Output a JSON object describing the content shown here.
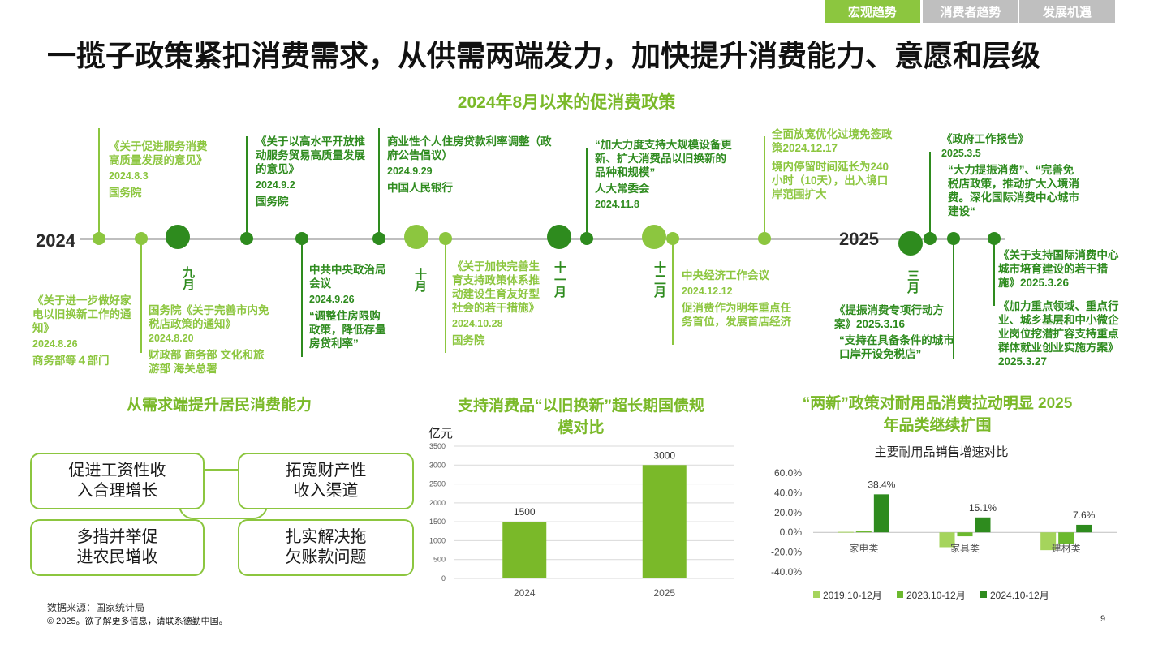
{
  "header": {
    "tabs": [
      {
        "label": "宏观趋势",
        "color": "#8cc63f"
      },
      {
        "label": "消费者趋势",
        "color": "#bfbfbf"
      },
      {
        "label": "发展机遇",
        "color": "#bfbfbf"
      }
    ],
    "title": "一揽子政策紧扣消费需求，从供需两端发力，加快提升消费能力、意愿和层级"
  },
  "timeline": {
    "title": "2024年8月以来的促消费政策",
    "year_start": "2024",
    "year_end": "2025",
    "months": [
      "九月",
      "十月",
      "十一月",
      "十二月",
      "三月"
    ],
    "colors": {
      "light": "#8cc63f",
      "dark": "#2e8b1e"
    },
    "events": [
      {
        "title": "《关于促进服务消费高质量发展的意见》",
        "date": "2024.8.3",
        "org": "国务院"
      },
      {
        "title": "《关于进一步做好家电以旧换新工作的通知》",
        "date": "2024.8.26",
        "org": "商务部等４部门"
      },
      {
        "title": "国务院《关于完善市内免税店政策的通知》",
        "date": "2024.8.20",
        "org": "财政部 商务部 文化和旅游部 海关总署"
      },
      {
        "title": "《关于以高水平开放推动服务贸易高质量发展的意见》",
        "date": "2024.9.2",
        "org": "国务院"
      },
      {
        "title": "中共中央政治局会议",
        "date": "2024.9.26",
        "note": "“调整住房限购政策，降低存量房贷利率”"
      },
      {
        "title": "商业性个人住房贷款利率调整（政府公告倡议）",
        "date": "2024.9.29",
        "org": "中国人民银行"
      },
      {
        "title": "《关于加快完善生育支持政策体系推动建设生育友好型社会的若干措施》",
        "date": "2024.10.28",
        "org": "国务院"
      },
      {
        "title": "“加大力度支持大规模设备更新、扩大消费品以旧换新的品种和规模”",
        "org": "人大常委会",
        "date": "2024.11.8"
      },
      {
        "title": "中央经济工作会议",
        "date": "2024.12.12",
        "note": "促消费作为明年重点任务首位，发展首店经济"
      },
      {
        "title": "全面放宽优化过境免签政策2024.12.17",
        "note": "境内停留时间延长为240小时（10天），出入境口岸范围扩大"
      },
      {
        "title": "《政府工作报告》",
        "date": "2025.3.5",
        "note": "“大力提振消费”、“完善免税店政策，推动扩大入境消费。深化国际消费中心城市建设“"
      },
      {
        "title": "《提振消费专项行动方案》2025.3.16",
        "note": "“支持在具备条件的城市口岸开设免税店”"
      },
      {
        "title": "《关于支持国际消费中心城市培育建设的若干措施》2025.3.26",
        "note": "《加力重点领域、重点行业、城乡基层和中小微企业岗位挖潜扩容支持重点群体就业创业实施方案》2025.3.27"
      }
    ]
  },
  "demand": {
    "title": "从需求端提升居民消费能力",
    "boxes": [
      "促进工资性收入合理增长",
      "拓宽财产性收入渠道",
      "多措并举促进农民增收",
      "扎实解决拖欠账款问题"
    ]
  },
  "bond": {
    "title": "支持消费品“以旧换新”超长期国债规模对比"
  },
  "durables": {
    "title": "“两新”政策对耐用品消费拉动明显 2025年品类继续扩围",
    "chart_title": "主要耐用品销售增速对比"
  },
  "chart_data": [
    {
      "type": "bar",
      "ylabel": "亿元",
      "categories": [
        "2024",
        "2025"
      ],
      "values": [
        1500,
        3000
      ],
      "data_labels": [
        "1500",
        "3000"
      ],
      "ylim": [
        0,
        3500
      ],
      "yticks": [
        "0",
        "500",
        "1000",
        "1500",
        "2000",
        "2500",
        "3000",
        "3500"
      ],
      "grid": true,
      "color": "#7ab929"
    },
    {
      "type": "bar",
      "title": "主要耐用品销售增速对比",
      "categories": [
        "家电类",
        "家具类",
        "建材类"
      ],
      "series": [
        {
          "name": "2019.10-12月",
          "values": [
            0.5,
            -15,
            -18
          ],
          "color": "#a5d45c"
        },
        {
          "name": "2023.10-12月",
          "values": [
            1,
            -4,
            -12
          ],
          "color": "#6bb92e"
        },
        {
          "name": "2024.10-12月",
          "values": [
            38.4,
            15.1,
            7.6
          ],
          "color": "#2e8b1e"
        }
      ],
      "data_labels": [
        "38.4%",
        "15.1%",
        "7.6%"
      ],
      "ylim": [
        -40,
        60
      ],
      "yticks": [
        "60.0%",
        "40.0%",
        "20.0%",
        "0.0%",
        "-20.0%",
        "-40.0%"
      ],
      "legend": "bottom",
      "grid": false
    }
  ],
  "footer": {
    "source": "数据来源：国家统计局",
    "copyright": "© 2025。欲了解更多信息，请联系德勤中国。",
    "page": "9"
  }
}
